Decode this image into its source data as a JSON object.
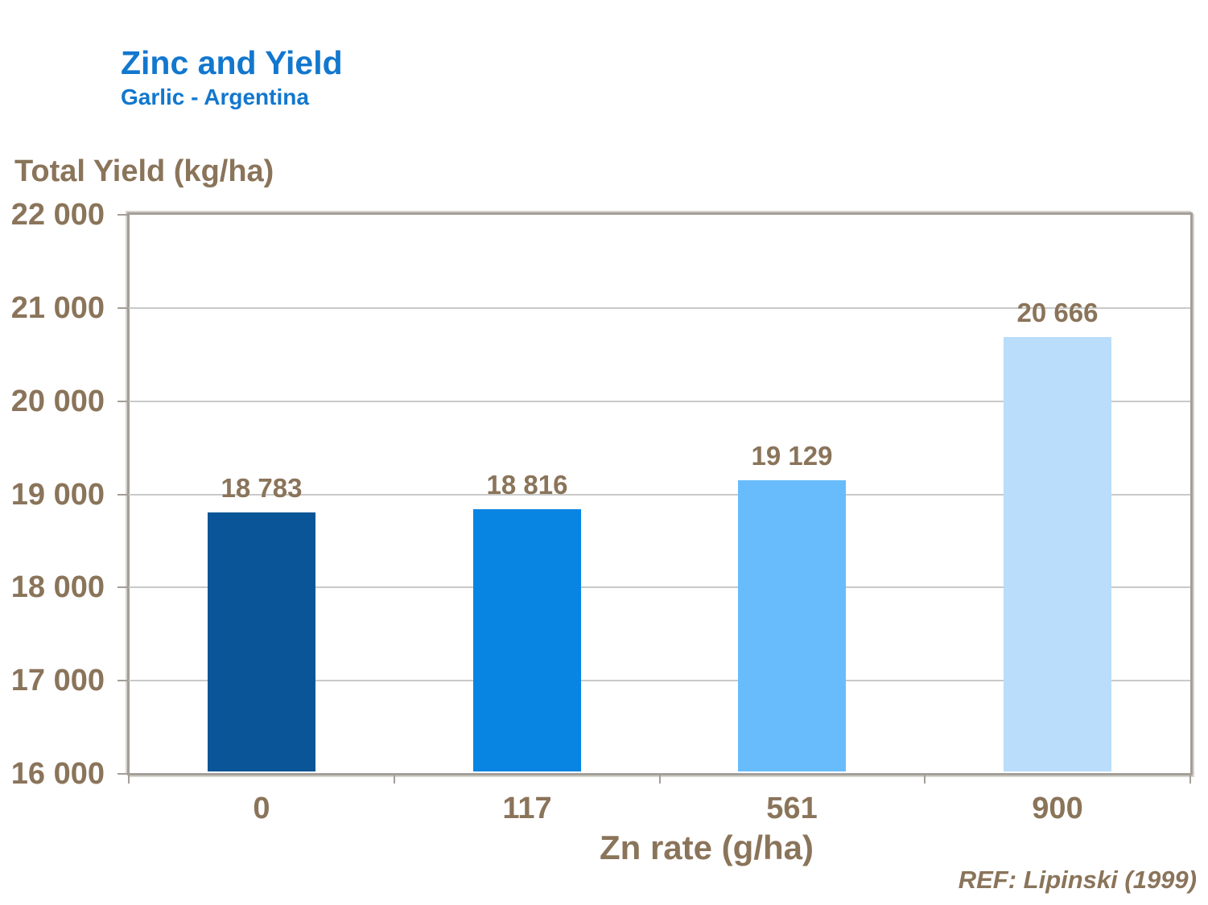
{
  "header": {
    "title": "Zinc and Yield",
    "subtitle": "Garlic - Argentina"
  },
  "footer": {
    "reference": "REF: Lipinski (1999)"
  },
  "colors": {
    "title_blue": "#1277CE",
    "text_brown": "#8A745A",
    "gridline_gray": "#C9C9C9",
    "axis_frame_gray": "#A39E98",
    "bar_colors": [
      "#0A5598",
      "#0884E2",
      "#68BCFB",
      "#B9DDFB"
    ]
  },
  "chart_data": {
    "type": "bar",
    "title": "Zinc and Yield",
    "subtitle": "Garlic - Argentina",
    "categories": [
      "0",
      "117",
      "561",
      "900"
    ],
    "values": [
      18783,
      18816,
      19129,
      20666
    ],
    "data_labels": [
      "18 783",
      "18 816",
      "19 129",
      "20 666"
    ],
    "xlabel": "Zn rate (g/ha)",
    "ylabel": "Total Yield (kg/ha)",
    "ylim": [
      16000,
      22000
    ],
    "y_tick_step": 1000,
    "y_tick_labels": [
      "22 000",
      "21 000",
      "20 000",
      "19 000",
      "18 000",
      "17 000",
      "16 000"
    ],
    "grid": "horizontal",
    "legend": "none",
    "bar_colors": [
      "#0A5598",
      "#0884E2",
      "#68BCFB",
      "#B9DDFB"
    ]
  }
}
